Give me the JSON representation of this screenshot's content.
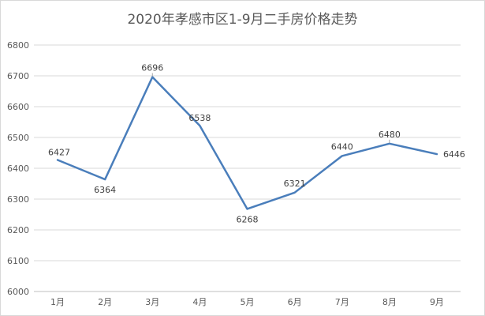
{
  "chart_data": {
    "type": "line",
    "title": "2020年孝感市区1-9月二手房价格走势",
    "categories": [
      "1月",
      "2月",
      "3月",
      "4月",
      "5月",
      "6月",
      "7月",
      "8月",
      "9月"
    ],
    "series": [
      {
        "values": [
          6427,
          6364,
          6696,
          6538,
          6268,
          6321,
          6440,
          6480,
          6446
        ],
        "color": "#4a7ebb"
      }
    ],
    "y_ticks": [
      "6000",
      "6100",
      "6200",
      "6300",
      "6400",
      "6500",
      "6600",
      "6700",
      "6800"
    ],
    "ylim": [
      6000,
      6800
    ],
    "grid": true,
    "legend": "none"
  }
}
